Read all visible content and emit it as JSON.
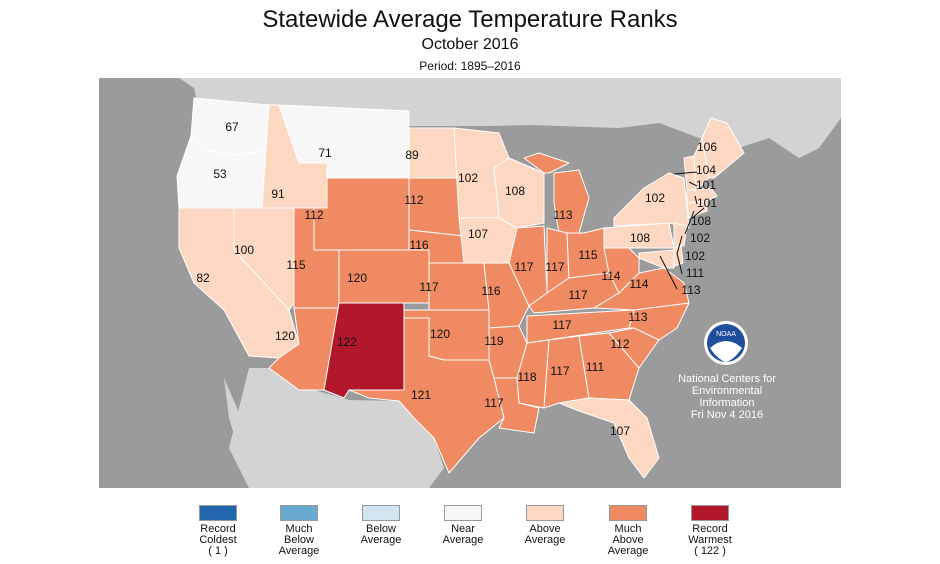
{
  "title": "Statewide Average Temperature Ranks",
  "subtitle": "October 2016",
  "period": "Period: 1895–2016",
  "colors": {
    "ocean": "#9b9b9b",
    "land": "#d3d3d3",
    "state_border": "#ffffff",
    "near": "#f7f7f7",
    "above": "#fcd7c2",
    "much_above": "#ef8a62",
    "record_warm": "#b2182b"
  },
  "credit": {
    "logo_text": "NOAA",
    "line1": "National Centers for",
    "line2": "Environmental",
    "line3": "Information",
    "date": "Fri Nov  4 2016"
  },
  "legend": [
    {
      "label": "Record\nColdest\n( 1 )",
      "color": "#2166ac"
    },
    {
      "label": "Much\nBelow\nAverage",
      "color": "#67a9cf"
    },
    {
      "label": "Below\nAverage",
      "color": "#d1e5f0"
    },
    {
      "label": "Near\nAverage",
      "color": "#f7f7f7"
    },
    {
      "label": "Above\nAverage",
      "color": "#fcd7c2"
    },
    {
      "label": "Much\nAbove\nAverage",
      "color": "#ef8a62"
    },
    {
      "label": "Record\nWarmest\n( 122 )",
      "color": "#b2182b"
    }
  ],
  "ranks": {
    "WA": "67",
    "OR": "53",
    "CA": "82",
    "ID": "91",
    "NV": "100",
    "MT": "71",
    "WY": "112",
    "UT": "115",
    "AZ": "120",
    "CO": "120",
    "NM": "122",
    "ND": "89",
    "SD": "112",
    "NE": "116",
    "KS": "117",
    "OK": "120",
    "TX": "121",
    "MN": "102",
    "IA": "107",
    "MO": "116",
    "AR": "119",
    "LA": "117",
    "WI": "108",
    "IL": "117",
    "MI": "113",
    "IN": "117",
    "OH": "115",
    "KY": "117",
    "TN": "117",
    "MS": "118",
    "AL": "117",
    "GA": "111",
    "FL": "107",
    "SC": "112",
    "NC": "113",
    "VA": "114",
    "WV": "114",
    "PA": "108",
    "NY": "102",
    "ME": "106",
    "NH": "104",
    "VT": "101",
    "MA": "101",
    "RI": "108",
    "CT": "102",
    "NJ": "102",
    "DE": "111",
    "MD": "113"
  }
}
